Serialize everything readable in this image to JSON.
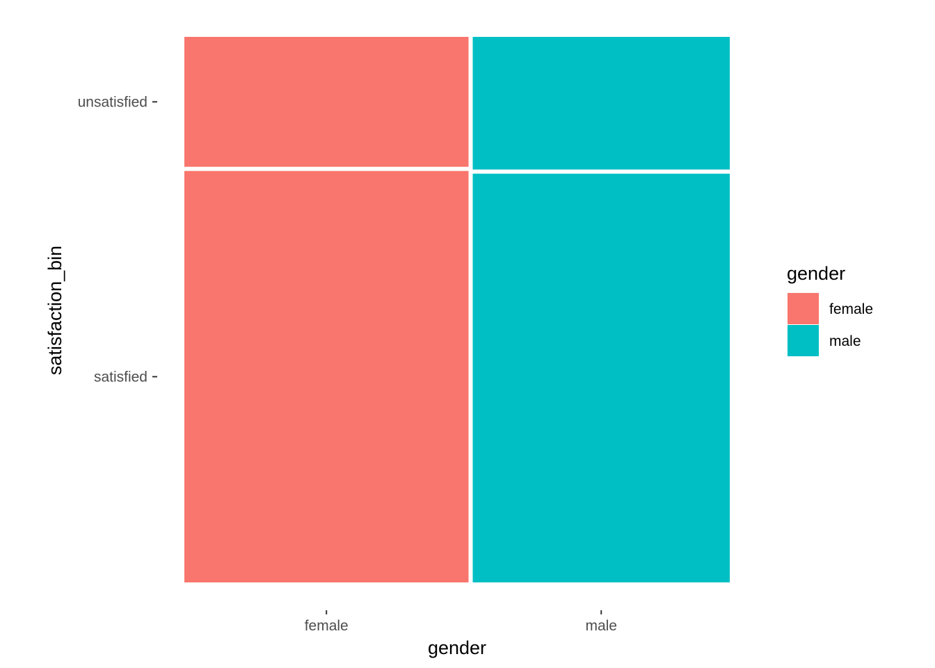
{
  "chart_data": {
    "type": "mosaic",
    "title": "",
    "xlabel": "gender",
    "ylabel": "satisfaction_bin",
    "x_categories": [
      "female",
      "male"
    ],
    "y_categories": [
      "satisfied",
      "unsatisfied"
    ],
    "x_proportions": [
      0.525,
      0.475
    ],
    "cells": [
      {
        "x": "female",
        "y": "satisfied",
        "proportion": 0.76
      },
      {
        "x": "female",
        "y": "unsatisfied",
        "proportion": 0.24
      },
      {
        "x": "male",
        "y": "satisfied",
        "proportion": 0.755
      },
      {
        "x": "male",
        "y": "unsatisfied",
        "proportion": 0.245
      }
    ],
    "legend": {
      "title": "gender",
      "position": "right",
      "items": [
        {
          "label": "female",
          "color": "#F8766D"
        },
        {
          "label": "male",
          "color": "#00BFC4"
        }
      ]
    },
    "grid": false
  }
}
